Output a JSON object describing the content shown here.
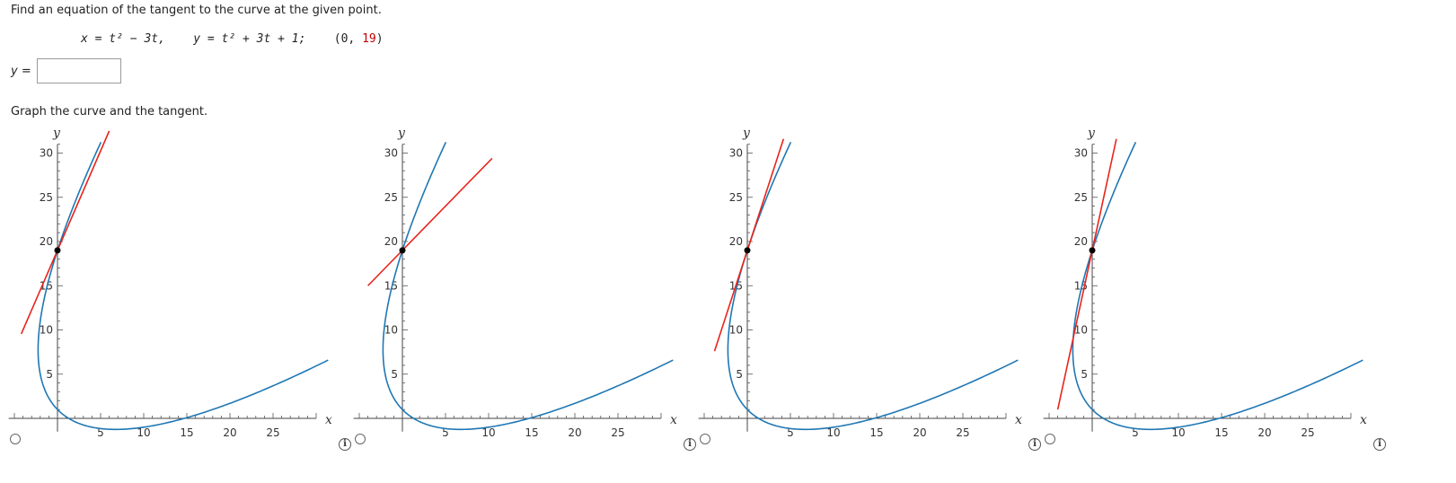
{
  "prompt": "Find an equation of the tangent to the curve at the given point.",
  "equation": {
    "x_part": "x = t² − 3t,",
    "y_part": "y = t² + 3t + 1;",
    "point_open": "(0, ",
    "point_y": "19",
    "point_close": ")"
  },
  "answer": {
    "label": "y =",
    "value": ""
  },
  "graph_prompt": "Graph the curve and the tangent.",
  "colors": {
    "curve": "#1f77b4",
    "tangent": "#e8241c",
    "point": "#000000"
  },
  "chart_data": [
    {
      "type": "line",
      "xlabel": "x",
      "ylabel": "y",
      "xlim": [
        -6.5,
        30
      ],
      "ylim": [
        -1.5,
        31
      ],
      "x_ticks": [
        5,
        10,
        15,
        20,
        25
      ],
      "y_ticks": [
        5,
        10,
        15,
        20,
        25,
        30
      ],
      "curve": {
        "param": "t",
        "x": "t^2 - 3t",
        "y": "t^2 + 3t + 1",
        "t_range": [
          -4.3,
          4.2
        ]
      },
      "point": [
        0,
        19
      ],
      "tangent_slope": 2.25,
      "tangent_x_range": [
        -4.2,
        6
      ],
      "option_state": "unselected"
    },
    {
      "type": "line",
      "xlabel": "x",
      "ylabel": "y",
      "xlim": [
        -6.5,
        30
      ],
      "ylim": [
        -1.5,
        31
      ],
      "x_ticks": [
        5,
        10,
        15,
        20,
        25
      ],
      "y_ticks": [
        5,
        10,
        15,
        20,
        25,
        30
      ],
      "curve": {
        "param": "t",
        "x": "t^2 - 3t",
        "y": "t^2 + 3t + 1",
        "t_range": [
          -4.3,
          4.2
        ]
      },
      "point": [
        0,
        19
      ],
      "tangent_slope": 1.0,
      "tangent_x_range": [
        -4,
        10.4
      ],
      "option_state": "unselected"
    },
    {
      "type": "line",
      "xlabel": "x",
      "ylabel": "y",
      "xlim": [
        -6.5,
        30
      ],
      "ylim": [
        -1.5,
        31
      ],
      "x_ticks": [
        5,
        10,
        15,
        20,
        25
      ],
      "y_ticks": [
        5,
        10,
        15,
        20,
        25,
        30
      ],
      "curve": {
        "param": "t",
        "x": "t^2 - 3t",
        "y": "t^2 + 3t + 1",
        "t_range": [
          -4.3,
          4.2
        ]
      },
      "point": [
        0,
        19
      ],
      "tangent_slope": 3.0,
      "tangent_x_range": [
        -3.8,
        4.2
      ],
      "option_state": "unselected"
    },
    {
      "type": "line",
      "xlabel": "x",
      "ylabel": "y",
      "xlim": [
        -6.5,
        30
      ],
      "ylim": [
        -1.5,
        31
      ],
      "x_ticks": [
        5,
        10,
        15,
        20,
        25
      ],
      "y_ticks": [
        5,
        10,
        15,
        20,
        25,
        30
      ],
      "curve": {
        "param": "t",
        "x": "t^2 - 3t",
        "y": "t^2 + 3t + 1",
        "t_range": [
          -4.3,
          4.2
        ]
      },
      "point": [
        0,
        19
      ],
      "tangent_slope": 4.5,
      "tangent_x_range": [
        -4.0,
        2.8
      ],
      "option_state": "unselected"
    }
  ]
}
